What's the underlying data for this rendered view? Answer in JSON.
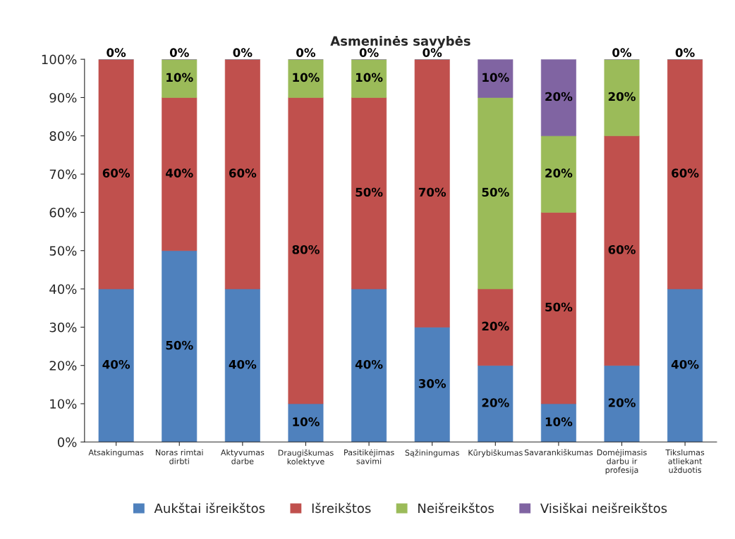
{
  "chart_data": {
    "type": "bar",
    "title": "Asmeninės savybės",
    "stacked": true,
    "categories": [
      "Atsakingumas",
      "Noras rimtai dirbti",
      "Aktyvumas darbe",
      "Draugiškumas kolektyve",
      "Pasitikėjimas savimi",
      "Sąžiningumas",
      "Kūrybiškumas",
      "Savarankiškumas",
      "Domėjimasis darbu ir profesija",
      "Tikslumas atliekant užduotis"
    ],
    "series": [
      {
        "name": "Aukštai išreikštos",
        "color": "#4f81bd",
        "values": [
          40,
          50,
          40,
          10,
          40,
          30,
          20,
          10,
          20,
          40
        ],
        "value_labels": [
          "40%",
          "50%",
          "40%",
          "10%",
          "40%",
          "30%",
          "20%",
          "10%",
          "20%",
          "40%"
        ]
      },
      {
        "name": "Išreikštos",
        "color": "#c0504d",
        "values": [
          60,
          40,
          60,
          80,
          50,
          70,
          20,
          50,
          60,
          60
        ],
        "value_labels": [
          "60%",
          "40%",
          "60%",
          "80%",
          "50%",
          "70%",
          "20%",
          "50%",
          "60%",
          "60%"
        ]
      },
      {
        "name": "Neišreikštos",
        "color": "#9bbb59",
        "values": [
          0,
          10,
          0,
          10,
          10,
          0,
          50,
          20,
          20,
          0
        ],
        "value_labels": [
          null,
          "10%",
          null,
          "10%",
          "10%",
          null,
          "50%",
          "20%",
          "20%",
          null
        ]
      },
      {
        "name": "Visiškai neišreikštos",
        "color": "#8064a2",
        "values": [
          0,
          0,
          0,
          0,
          0,
          0,
          10,
          20,
          0,
          0
        ],
        "value_labels": [
          "0%",
          "0%",
          "0%",
          "0%",
          "0%",
          "0%",
          "10%",
          "20%",
          "0%",
          "0%"
        ]
      }
    ],
    "ylim": [
      0,
      100
    ],
    "yticks": [
      {
        "value": 0,
        "label": "0%"
      },
      {
        "value": 10,
        "label": "10%"
      },
      {
        "value": 20,
        "label": "20%"
      },
      {
        "value": 30,
        "label": "30%"
      },
      {
        "value": 40,
        "label": "40%"
      },
      {
        "value": 50,
        "label": "50%"
      },
      {
        "value": 60,
        "label": "60%"
      },
      {
        "value": 70,
        "label": "70%"
      },
      {
        "value": 80,
        "label": "80%"
      },
      {
        "value": 90,
        "label": "90%"
      },
      {
        "value": 100,
        "label": "100%"
      }
    ],
    "grid": false,
    "legend": "bottom"
  }
}
